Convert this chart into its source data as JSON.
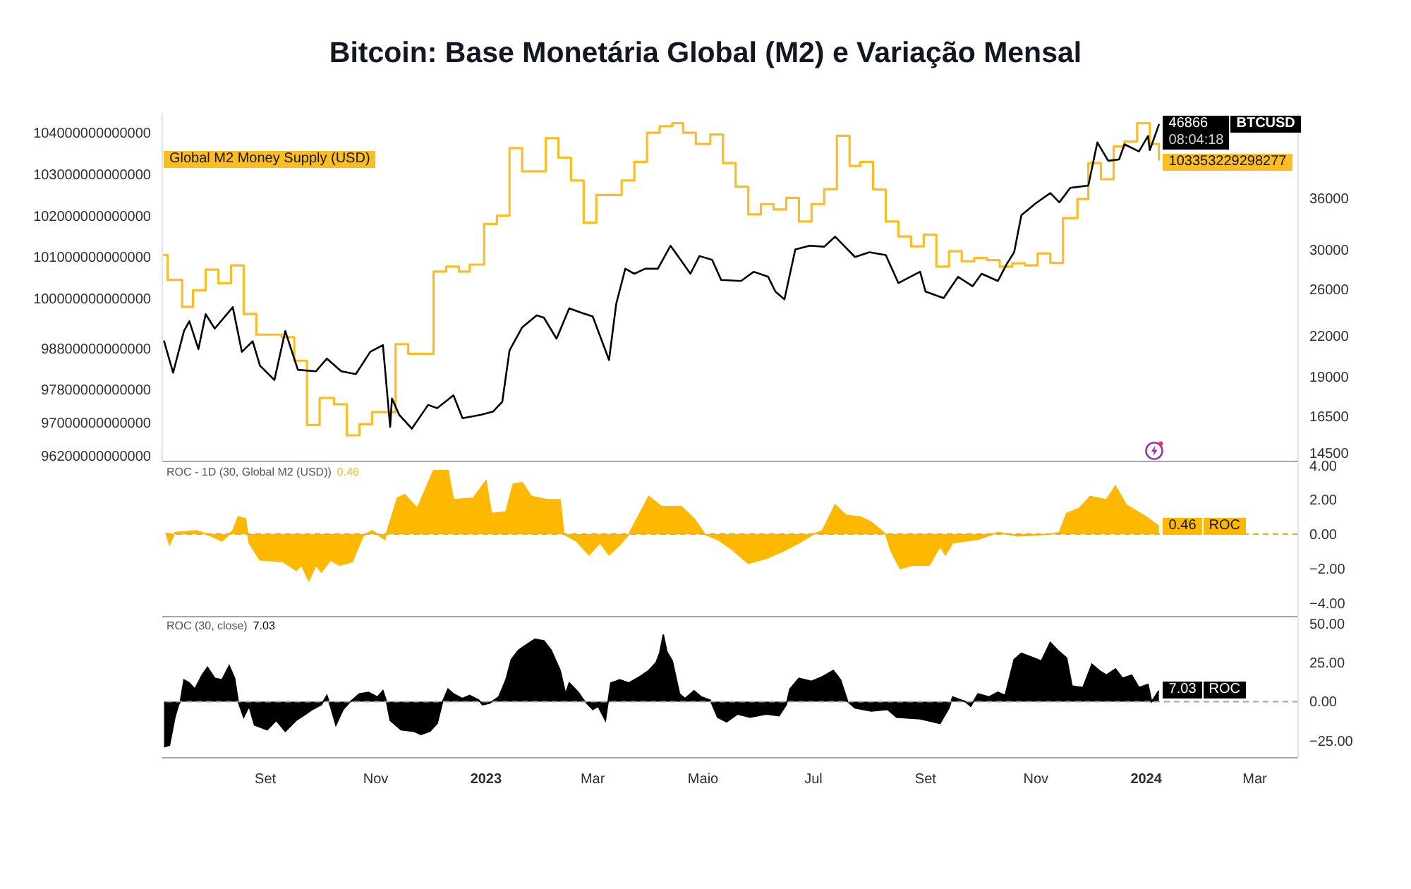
{
  "chart_data": [
    {
      "type": "line",
      "title": "Bitcoin: Base Monetária Global (M2) e Variação Mensal",
      "xlim": [
        "2022-07-06",
        "2024-03-25"
      ],
      "ylim": [
        96070000000000,
        104480000000000
      ],
      "yticks": [
        96200000000000,
        97000000000000,
        97800000000000,
        98800000000000,
        100000000000000,
        101000000000000,
        102000000000000,
        103000000000000,
        104000000000000
      ],
      "y2lim": [
        14050,
        48900
      ],
      "y2ticks": [
        14500,
        16500,
        19000,
        22000,
        26000,
        30000,
        36000
      ],
      "log": "y2",
      "tick_labels": "y",
      "annotations": [
        "08:04:18"
      ],
      "series": [
        {
          "name": "Global M2 Money Supply (USD)",
          "type": "step",
          "color": "#fbbd23",
          "x": [
            "2022-07-07",
            "2022-07-09",
            "2022-07-17",
            "2022-07-23",
            "2022-07-30",
            "2022-08-06",
            "2022-08-13",
            "2022-08-20",
            "2022-08-27",
            "2022-09-10",
            "2022-09-17",
            "2022-09-24",
            "2022-10-01",
            "2022-10-09",
            "2022-10-16",
            "2022-10-23",
            "2022-10-30",
            "2022-11-12",
            "2022-11-19",
            "2022-12-03",
            "2022-12-10",
            "2022-12-17",
            "2022-12-23",
            "2022-12-31",
            "2023-01-07",
            "2023-01-14",
            "2023-01-21",
            "2023-02-03",
            "2023-02-10",
            "2023-02-17",
            "2023-02-24",
            "2023-03-03",
            "2023-03-17",
            "2023-03-24",
            "2023-03-31",
            "2023-04-07",
            "2023-04-14",
            "2023-04-20",
            "2023-04-27",
            "2023-05-05",
            "2023-05-12",
            "2023-05-19",
            "2023-05-26",
            "2023-06-02",
            "2023-06-09",
            "2023-06-16",
            "2023-06-23",
            "2023-06-30",
            "2023-07-07",
            "2023-07-14",
            "2023-07-21",
            "2023-07-27",
            "2023-08-03",
            "2023-08-10",
            "2023-08-17",
            "2023-08-24",
            "2023-08-31",
            "2023-09-07",
            "2023-09-14",
            "2023-09-21",
            "2023-09-28",
            "2023-10-05",
            "2023-10-12",
            "2023-10-19",
            "2023-10-26",
            "2023-11-02",
            "2023-11-09",
            "2023-11-16",
            "2023-11-24",
            "2023-11-30",
            "2023-12-07",
            "2023-12-14",
            "2023-12-20",
            "2023-12-27",
            "2024-01-03",
            "2024-01-08"
          ],
          "values": [
            101050000000000,
            100450000000000,
            99800000000000,
            100200000000000,
            100700000000000,
            100370000000000,
            100800000000000,
            99630000000000,
            99130000000000,
            99070000000000,
            98500000000000,
            96950000000000,
            97600000000000,
            97450000000000,
            96700000000000,
            96970000000000,
            97260000000000,
            98900000000000,
            98670000000000,
            100650000000000,
            100770000000000,
            100650000000000,
            100820000000000,
            101800000000000,
            102000000000000,
            103630000000000,
            103070000000000,
            103870000000000,
            103400000000000,
            102850000000000,
            101830000000000,
            102500000000000,
            102850000000000,
            103300000000000,
            104000000000000,
            104160000000000,
            104230000000000,
            104000000000000,
            103730000000000,
            103960000000000,
            103270000000000,
            102700000000000,
            102030000000000,
            102280000000000,
            102150000000000,
            102430000000000,
            101860000000000,
            102280000000000,
            102640000000000,
            103930000000000,
            103200000000000,
            103300000000000,
            102630000000000,
            101860000000000,
            101500000000000,
            101260000000000,
            101540000000000,
            100770000000000,
            101140000000000,
            100900000000000,
            100980000000000,
            100930000000000,
            100770000000000,
            100850000000000,
            100800000000000,
            101090000000000,
            100860000000000,
            101940000000000,
            102400000000000,
            103270000000000,
            102880000000000,
            103670000000000,
            103790000000000,
            104230000000000,
            103730000000000,
            103353229298277
          ],
          "value_labels": [
            null,
            null,
            null,
            null,
            null,
            null,
            null,
            null,
            null,
            null,
            null,
            null,
            null,
            null,
            null,
            null,
            null,
            null,
            null,
            null,
            null,
            null,
            null,
            null,
            null,
            null,
            null,
            null,
            null,
            null,
            null,
            null,
            null,
            null,
            null,
            null,
            null,
            null,
            null,
            null,
            null,
            null,
            null,
            null,
            null,
            null,
            null,
            null,
            null,
            null,
            null,
            null,
            null,
            null,
            null,
            null,
            null,
            null,
            null,
            null,
            null,
            null,
            null,
            null,
            null,
            null,
            null,
            null,
            null,
            null,
            null,
            null,
            null,
            null,
            null,
            "103353229298277"
          ]
        },
        {
          "name": "BTCUSD",
          "color": "#000000",
          "axis": "y2",
          "x": [
            "2022-07-07",
            "2022-07-12",
            "2022-07-18",
            "2022-07-21",
            "2022-07-26",
            "2022-07-30",
            "2022-08-04",
            "2022-08-14",
            "2022-08-19",
            "2022-08-25",
            "2022-08-29",
            "2022-09-06",
            "2022-09-12",
            "2022-09-19",
            "2022-09-29",
            "2022-10-05",
            "2022-10-13",
            "2022-10-21",
            "2022-10-29",
            "2022-11-05",
            "2022-11-09",
            "2022-11-10",
            "2022-11-14",
            "2022-11-21",
            "2022-11-30",
            "2022-12-05",
            "2022-12-14",
            "2022-12-19",
            "2022-12-29",
            "2023-01-05",
            "2023-01-10",
            "2023-01-14",
            "2023-01-21",
            "2023-01-29",
            "2023-02-02",
            "2023-02-09",
            "2023-02-16",
            "2023-02-23",
            "2023-03-01",
            "2023-03-10",
            "2023-03-14",
            "2023-03-19",
            "2023-03-24",
            "2023-03-30",
            "2023-04-06",
            "2023-04-13",
            "2023-04-19",
            "2023-04-24",
            "2023-04-29",
            "2023-05-06",
            "2023-05-11",
            "2023-05-22",
            "2023-05-29",
            "2023-06-06",
            "2023-06-10",
            "2023-06-15",
            "2023-06-21",
            "2023-06-29",
            "2023-07-07",
            "2023-07-13",
            "2023-07-24",
            "2023-08-01",
            "2023-08-10",
            "2023-08-17",
            "2023-08-29",
            "2023-09-01",
            "2023-09-11",
            "2023-09-19",
            "2023-09-27",
            "2023-10-02",
            "2023-10-11",
            "2023-10-16",
            "2023-10-20",
            "2023-10-24",
            "2023-11-01",
            "2023-11-09",
            "2023-11-14",
            "2023-11-20",
            "2023-11-30",
            "2023-12-05",
            "2023-12-11",
            "2023-12-17",
            "2023-12-20",
            "2023-12-28",
            "2024-01-02",
            "2024-01-03",
            "2024-01-08"
          ],
          "values": [
            21600,
            19300,
            22400,
            23200,
            21000,
            23800,
            22600,
            24400,
            20800,
            21600,
            19800,
            18800,
            22400,
            19500,
            19400,
            20300,
            19400,
            19200,
            20800,
            21300,
            15900,
            17600,
            16600,
            15800,
            17200,
            17000,
            17800,
            16400,
            16600,
            16800,
            17400,
            20900,
            22700,
            23700,
            23500,
            21800,
            24300,
            23900,
            23600,
            20200,
            24700,
            28000,
            27500,
            28000,
            28000,
            30400,
            28800,
            27500,
            29300,
            28900,
            26900,
            26800,
            27700,
            27200,
            25800,
            25100,
            30000,
            30400,
            30300,
            31400,
            29200,
            29700,
            29400,
            26600,
            27700,
            25800,
            25200,
            27200,
            26300,
            27500,
            26800,
            28500,
            29700,
            33900,
            35400,
            36700,
            35500,
            37400,
            37700,
            44000,
            41200,
            41400,
            43700,
            42600,
            45000,
            42800,
            46866
          ],
          "value_labels": [
            null,
            null,
            null,
            null,
            null,
            null,
            null,
            null,
            null,
            null,
            null,
            null,
            null,
            null,
            null,
            null,
            null,
            null,
            null,
            null,
            null,
            null,
            null,
            null,
            null,
            null,
            null,
            null,
            null,
            null,
            null,
            null,
            null,
            null,
            null,
            null,
            null,
            null,
            null,
            null,
            null,
            null,
            null,
            null,
            null,
            null,
            null,
            null,
            null,
            null,
            null,
            null,
            null,
            null,
            null,
            null,
            null,
            null,
            null,
            null,
            null,
            null,
            null,
            null,
            null,
            null,
            null,
            null,
            null,
            null,
            null,
            null,
            null,
            null,
            null,
            null,
            null,
            null,
            null,
            null,
            null,
            null,
            null,
            null,
            null,
            null,
            "46866"
          ]
        }
      ]
    },
    {
      "type": "area",
      "title": "ROC - 1D (30, Global M2 (USD))",
      "xlim": [
        "2022-07-06",
        "2024-03-25"
      ],
      "ylim": [
        -4.8,
        4.15
      ],
      "yticks": [
        {
          "value": 4,
          "label": "4.00"
        },
        {
          "value": 2,
          "label": "2.00"
        },
        {
          "value": 0,
          "label": "0.00"
        },
        {
          "value": -2,
          "label": "−2.00"
        },
        {
          "value": -4,
          "label": "−4.00"
        }
      ],
      "tick_labels": "y",
      "ref_lines": [
        {
          "axis": "y",
          "value": 0,
          "color": "#f5a623",
          "line_style": "dashed"
        }
      ],
      "x": [
        "2022-07-08",
        "2022-07-10",
        "2022-07-13",
        "2022-07-25",
        "2022-08-02",
        "2022-08-08",
        "2022-08-14",
        "2022-08-17",
        "2022-08-21",
        "2022-08-23",
        "2022-08-29",
        "2022-09-11",
        "2022-09-18",
        "2022-09-21",
        "2022-09-25",
        "2022-09-29",
        "2022-10-02",
        "2022-10-07",
        "2022-10-12",
        "2022-10-19",
        "2022-10-25",
        "2022-10-30",
        "2022-11-06",
        "2022-11-13",
        "2022-11-17",
        "2022-11-24",
        "2022-12-03",
        "2022-12-11",
        "2022-12-14",
        "2022-12-25",
        "2023-01-01",
        "2023-01-04",
        "2023-01-12",
        "2023-01-16",
        "2023-01-21",
        "2023-01-26",
        "2023-02-04",
        "2023-02-11",
        "2023-02-13",
        "2023-02-20",
        "2023-02-27",
        "2023-03-05",
        "2023-03-10",
        "2023-03-16",
        "2023-03-21",
        "2023-03-25",
        "2023-04-01",
        "2023-04-08",
        "2023-04-19",
        "2023-04-26",
        "2023-05-02",
        "2023-05-09",
        "2023-05-16",
        "2023-05-26",
        "2023-06-05",
        "2023-06-14",
        "2023-06-23",
        "2023-07-01",
        "2023-07-06",
        "2023-07-13",
        "2023-07-19",
        "2023-07-27",
        "2023-08-02",
        "2023-08-10",
        "2023-08-13",
        "2023-08-18",
        "2023-08-25",
        "2023-09-03",
        "2023-09-09",
        "2023-09-12",
        "2023-09-16",
        "2023-09-30",
        "2023-10-11",
        "2023-10-22",
        "2023-11-09",
        "2023-11-14",
        "2023-11-18",
        "2023-11-25",
        "2023-12-01",
        "2023-12-10",
        "2023-12-15",
        "2023-12-21",
        "2024-01-01",
        "2024-01-08"
      ],
      "series": [
        {
          "name": "ROC",
          "color": "#ffb800",
          "values": [
            0.1,
            -0.6,
            0.1,
            0.2,
            -0.1,
            -0.4,
            0.2,
            1.0,
            0.9,
            -0.5,
            -1.5,
            -1.6,
            -2.1,
            -1.8,
            -2.7,
            -1.8,
            -2.2,
            -1.5,
            -1.8,
            -1.6,
            -0.1,
            0.2,
            -0.3,
            2.1,
            2.3,
            1.5,
            3.7,
            3.7,
            2.0,
            2.1,
            3.1,
            1.2,
            1.3,
            2.9,
            3.0,
            2.2,
            2.0,
            2.0,
            0,
            -0.4,
            -1.2,
            -0.5,
            -1.2,
            -0.6,
            0,
            0.8,
            2.2,
            1.6,
            1.6,
            0.9,
            0,
            -0.3,
            -0.8,
            -1.7,
            -1.4,
            -1.0,
            -0.5,
            0,
            0.2,
            1.7,
            1.1,
            1.0,
            0.7,
            0,
            -1.0,
            -2.0,
            -1.8,
            -1.8,
            -0.7,
            -1.2,
            -0.5,
            -0.3,
            0.1,
            -0.1,
            0,
            0.1,
            1.2,
            1.5,
            2.2,
            2.0,
            2.8,
            1.7,
            1.0,
            0.46
          ],
          "value_labels": [
            null,
            null,
            null,
            null,
            null,
            null,
            null,
            null,
            null,
            null,
            null,
            null,
            null,
            null,
            null,
            null,
            null,
            null,
            null,
            null,
            null,
            null,
            null,
            null,
            null,
            null,
            null,
            null,
            null,
            null,
            null,
            null,
            null,
            null,
            null,
            null,
            null,
            null,
            null,
            null,
            null,
            null,
            null,
            null,
            null,
            null,
            null,
            null,
            null,
            null,
            null,
            null,
            null,
            null,
            null,
            null,
            null,
            null,
            null,
            null,
            null,
            null,
            null,
            null,
            null,
            null,
            null,
            null,
            null,
            null,
            null,
            null,
            null,
            null,
            null,
            null,
            null,
            null,
            null,
            null,
            null,
            null,
            null,
            "0.46"
          ]
        }
      ]
    },
    {
      "type": "area",
      "title": "ROC (30, close)",
      "xlim": [
        "2022-07-06",
        "2024-03-25"
      ],
      "xticks": [
        {
          "value": "2022-09-01",
          "label": "Set"
        },
        {
          "value": "2022-11-01",
          "label": "Nov"
        },
        {
          "value": "2023-01-01",
          "label": "2023"
        },
        {
          "value": "2023-03-01",
          "label": "Mar"
        },
        {
          "value": "2023-05-01",
          "label": "Maio"
        },
        {
          "value": "2023-07-01",
          "label": "Jul"
        },
        {
          "value": "2023-09-01",
          "label": "Set"
        },
        {
          "value": "2023-11-01",
          "label": "Nov"
        },
        {
          "value": "2024-01-01",
          "label": "2024"
        },
        {
          "value": "2024-03-01",
          "label": "Mar"
        }
      ],
      "ylim": [
        -36,
        54.5
      ],
      "yticks": [
        {
          "value": 50,
          "label": "50.00"
        },
        {
          "value": 25,
          "label": "25.00"
        },
        {
          "value": 0,
          "label": "0.00"
        },
        {
          "value": -25,
          "label": "−25.00"
        }
      ],
      "ref_lines": [
        {
          "axis": "y",
          "value": 0,
          "color": "#a3a6af",
          "line_style": "dashed"
        }
      ],
      "x": [
        "2022-07-07",
        "2022-07-10",
        "2022-07-13",
        "2022-07-15",
        "2022-07-16",
        "2022-07-18",
        "2022-07-21",
        "2022-07-24",
        "2022-07-28",
        "2022-07-31",
        "2022-08-04",
        "2022-08-08",
        "2022-08-12",
        "2022-08-15",
        "2022-08-17",
        "2022-08-20",
        "2022-08-23",
        "2022-08-26",
        "2022-09-02",
        "2022-09-07",
        "2022-09-12",
        "2022-09-18",
        "2022-09-22",
        "2022-09-27",
        "2022-10-02",
        "2022-10-05",
        "2022-10-07",
        "2022-10-10",
        "2022-10-14",
        "2022-10-18",
        "2022-10-23",
        "2022-10-28",
        "2022-11-02",
        "2022-11-05",
        "2022-11-07",
        "2022-11-09",
        "2022-11-15",
        "2022-11-22",
        "2022-11-26",
        "2022-12-01",
        "2022-12-05",
        "2022-12-08",
        "2022-12-11",
        "2022-12-14",
        "2022-12-19",
        "2022-12-23",
        "2022-12-28",
        "2022-12-30",
        "2023-01-03",
        "2023-01-08",
        "2023-01-12",
        "2023-01-15",
        "2023-01-19",
        "2023-01-24",
        "2023-01-28",
        "2023-02-02",
        "2023-02-06",
        "2023-02-11",
        "2023-02-14",
        "2023-02-16",
        "2023-02-21",
        "2023-02-24",
        "2023-03-01",
        "2023-03-04",
        "2023-03-08",
        "2023-03-11",
        "2023-03-16",
        "2023-03-21",
        "2023-03-27",
        "2023-04-01",
        "2023-04-05",
        "2023-04-07",
        "2023-04-09",
        "2023-04-11",
        "2023-04-14",
        "2023-04-18",
        "2023-04-21",
        "2023-04-26",
        "2023-04-30",
        "2023-05-05",
        "2023-05-09",
        "2023-05-14",
        "2023-05-20",
        "2023-05-27",
        "2023-06-05",
        "2023-06-12",
        "2023-06-16",
        "2023-06-18",
        "2023-06-23",
        "2023-06-30",
        "2023-07-06",
        "2023-07-12",
        "2023-07-16",
        "2023-07-20",
        "2023-07-24",
        "2023-08-02",
        "2023-08-11",
        "2023-08-16",
        "2023-08-29",
        "2023-09-09",
        "2023-09-14",
        "2023-09-16",
        "2023-09-23",
        "2023-09-26",
        "2023-09-30",
        "2023-10-06",
        "2023-10-11",
        "2023-10-15",
        "2023-10-20",
        "2023-10-24",
        "2023-10-31",
        "2023-11-04",
        "2023-11-09",
        "2023-11-13",
        "2023-11-18",
        "2023-11-21",
        "2023-11-27",
        "2023-12-02",
        "2023-12-06",
        "2023-12-10",
        "2023-12-15",
        "2023-12-19",
        "2023-12-24",
        "2023-12-28",
        "2024-01-02",
        "2024-01-04",
        "2024-01-08"
      ],
      "series": [
        {
          "name": "ROC",
          "color": "#000000",
          "values": [
            -29,
            -28,
            -10,
            -2,
            0,
            14,
            12,
            8,
            17,
            22,
            15,
            14,
            23,
            15,
            0,
            -10,
            -3,
            -15,
            -18,
            -12,
            -19,
            -12,
            -9,
            -5,
            -2,
            4,
            -3,
            -15,
            -5,
            0,
            5,
            6,
            3,
            7,
            0,
            -12,
            -18,
            -19,
            -21,
            -19,
            -14,
            0,
            8,
            5,
            2,
            4,
            1,
            -2,
            -1,
            3,
            14,
            27,
            33,
            37,
            40,
            39,
            33,
            20,
            5,
            12,
            6,
            1,
            -5,
            -3,
            -12,
            12,
            14,
            12,
            16,
            20,
            25,
            31,
            43,
            32,
            26,
            5,
            2,
            7,
            3,
            1,
            -10,
            -13,
            -8,
            -10,
            -8,
            -9,
            -2,
            8,
            15,
            13,
            16,
            20,
            14,
            0,
            -4,
            -6,
            -5,
            -10,
            -11,
            -14,
            -4,
            3,
            0,
            -3,
            5,
            3,
            6,
            4,
            27,
            31,
            28,
            26,
            38,
            33,
            28,
            10,
            9,
            24,
            20,
            17,
            21,
            15,
            17,
            9,
            11,
            0,
            7.03
          ],
          "value_labels": [
            null,
            null,
            null,
            null,
            null,
            null,
            null,
            null,
            null,
            null,
            null,
            null,
            null,
            null,
            null,
            null,
            null,
            null,
            null,
            null,
            null,
            null,
            null,
            null,
            null,
            null,
            null,
            null,
            null,
            null,
            null,
            null,
            null,
            null,
            null,
            null,
            null,
            null,
            null,
            null,
            null,
            null,
            null,
            null,
            null,
            null,
            null,
            null,
            null,
            null,
            null,
            null,
            null,
            null,
            null,
            null,
            null,
            null,
            null,
            null,
            null,
            null,
            null,
            null,
            null,
            null,
            null,
            null,
            null,
            null,
            null,
            null,
            null,
            null,
            null,
            null,
            null,
            null,
            null,
            null,
            null,
            null,
            null,
            null,
            null,
            null,
            null,
            null,
            null,
            null,
            null,
            null,
            null,
            null,
            null,
            null,
            null,
            null,
            null,
            null,
            null,
            null,
            null,
            null,
            null,
            null,
            null,
            null,
            null,
            null,
            null,
            null,
            null,
            null,
            null,
            null,
            null,
            null,
            null,
            null,
            null,
            null,
            null,
            null,
            null,
            null,
            "7.03"
          ]
        }
      ]
    }
  ]
}
